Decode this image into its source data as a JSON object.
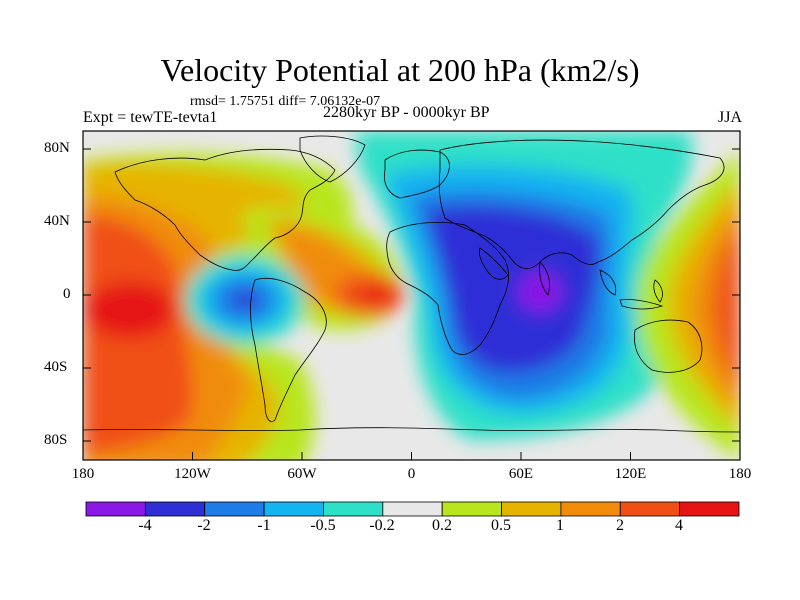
{
  "title": "Velocity Potential at 200 hPa (km2/s)",
  "stats_line": "rmsd= 1.75751 diff= 7.06132e-07",
  "left_label": "Expt = tewTE-tevta1",
  "center_label": "2280kyr BP - 0000kyr BP",
  "right_label": "JJA",
  "lat_ticks": [
    "80N",
    "40N",
    "0",
    "40S",
    "80S"
  ],
  "lon_ticks": [
    "180",
    "120W",
    "60W",
    "0",
    "60E",
    "120E",
    "180"
  ],
  "colorbar": {
    "labels": [
      "-4",
      "-2",
      "-1",
      "-0.5",
      "-0.2",
      "0.2",
      "0.5",
      "1",
      "2",
      "4"
    ],
    "colors": [
      "#8a19e6",
      "#2f2fd6",
      "#1f7be6",
      "#14b4f0",
      "#2ee0c8",
      "#e8e8e8",
      "#b8e61e",
      "#e6b400",
      "#f08c0a",
      "#f05014",
      "#e61414"
    ]
  },
  "colors": {
    "background": "#e8e8e8",
    "coastline": "#000000"
  }
}
